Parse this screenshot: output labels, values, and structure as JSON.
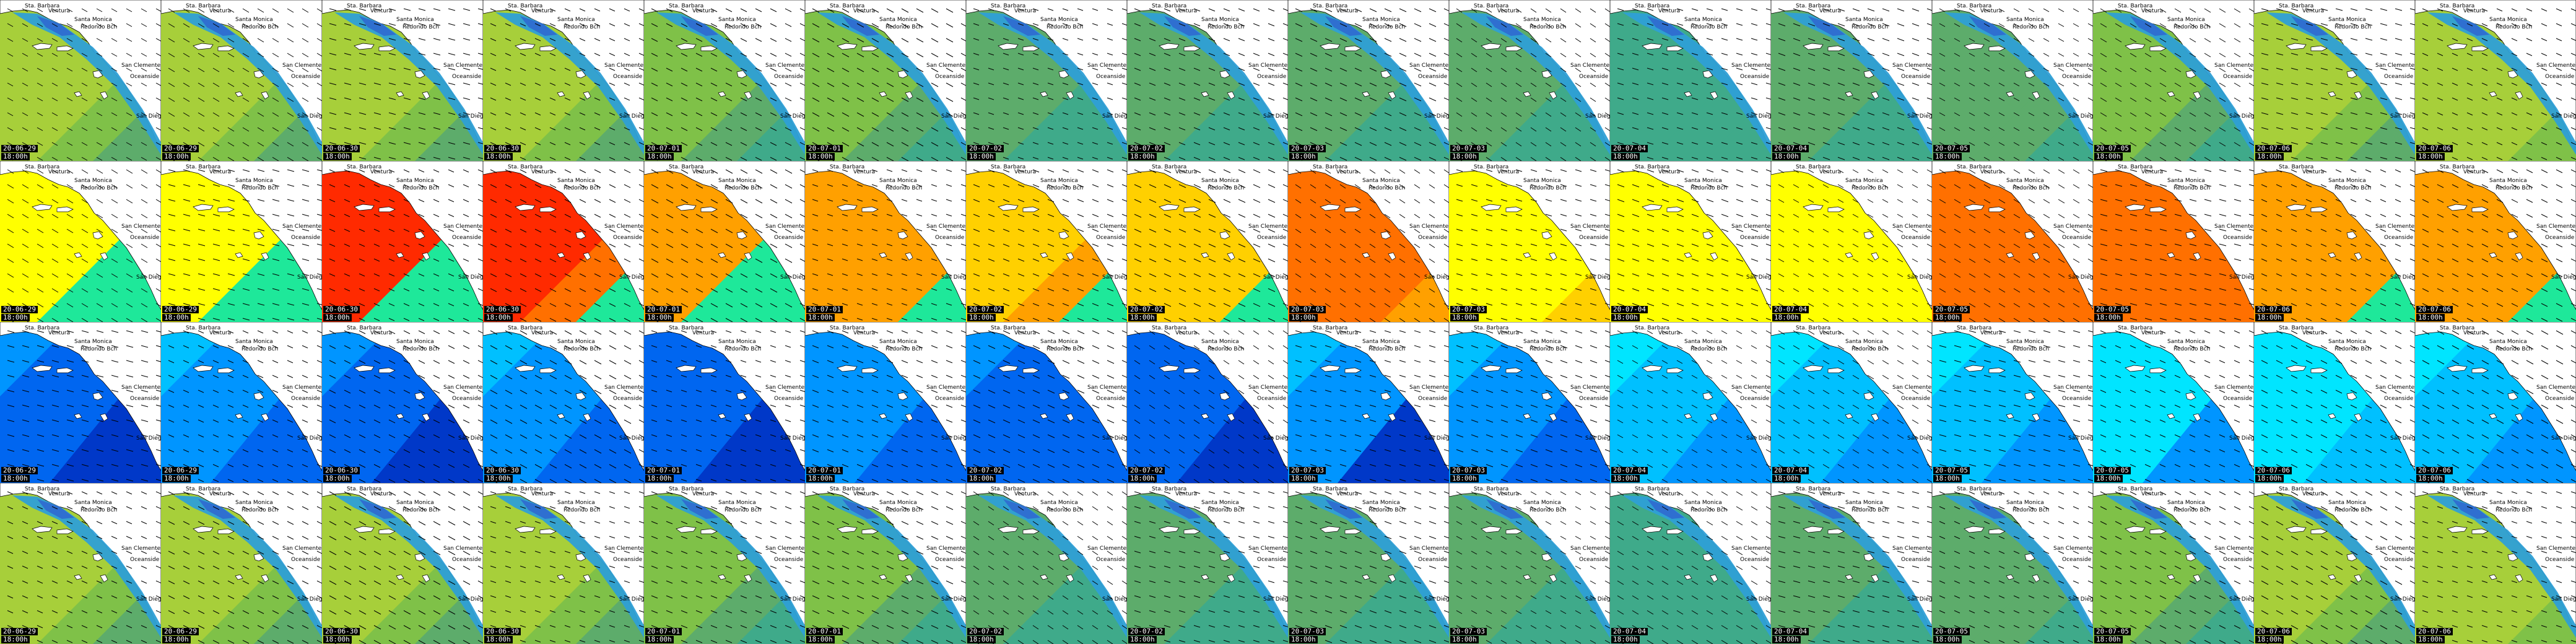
{
  "frames": [
    {
      "date": "20-06-29",
      "time": "18:00h"
    },
    {
      "date": "20-06-29",
      "time": "18:00h"
    },
    {
      "date": "20-06-30",
      "time": "18:00h"
    },
    {
      "date": "20-06-30",
      "time": "18:00h"
    },
    {
      "date": "20-07-01",
      "time": "18:00h"
    },
    {
      "date": "20-07-01",
      "time": "18:00h"
    },
    {
      "date": "20-07-02",
      "time": "18:00h"
    },
    {
      "date": "20-07-02",
      "time": "18:00h"
    },
    {
      "date": "20-07-03",
      "time": "18:00h"
    },
    {
      "date": "20-07-03",
      "time": "18:00h"
    },
    {
      "date": "20-07-04",
      "time": "18:00h"
    },
    {
      "date": "20-07-04",
      "time": "18:00h"
    },
    {
      "date": "20-07-05",
      "time": "18:00h"
    },
    {
      "date": "20-07-05",
      "time": "18:00h"
    },
    {
      "date": "20-07-06",
      "time": "18:00h"
    },
    {
      "date": "20-07-06",
      "time": "18:00h"
    }
  ],
  "places": {
    "santa_barbara": "Sta. Barbara",
    "ventura": "Ventura",
    "santa_monica": "Santa Monica",
    "redondo_beach": "Redondo Bch",
    "san_clemente": "San Clemente",
    "oceanside": "Oceanside",
    "san_diego": "San Diego"
  },
  "rows": [
    {
      "variable": "row-1",
      "palette": [
        "#a7cf3a",
        "#7fc148",
        "#5dac6b",
        "#3faa8a",
        "#2e9fd6",
        "#2f6fd0"
      ]
    },
    {
      "variable": "row-2",
      "palette": [
        "#ffff00",
        "#ffd000",
        "#ffa000",
        "#ff7000",
        "#ff2a00",
        "#1ee89a"
      ]
    },
    {
      "variable": "row-3",
      "palette": [
        "#00e5ff",
        "#00c0ff",
        "#0095ff",
        "#0066f0",
        "#0038c8",
        "#0010a0"
      ]
    },
    {
      "variable": "row-4",
      "palette": [
        "#a7cf3a",
        "#7fc148",
        "#5dac6b",
        "#3faa8a",
        "#2e9fd6",
        "#2f6fd0"
      ]
    }
  ]
}
